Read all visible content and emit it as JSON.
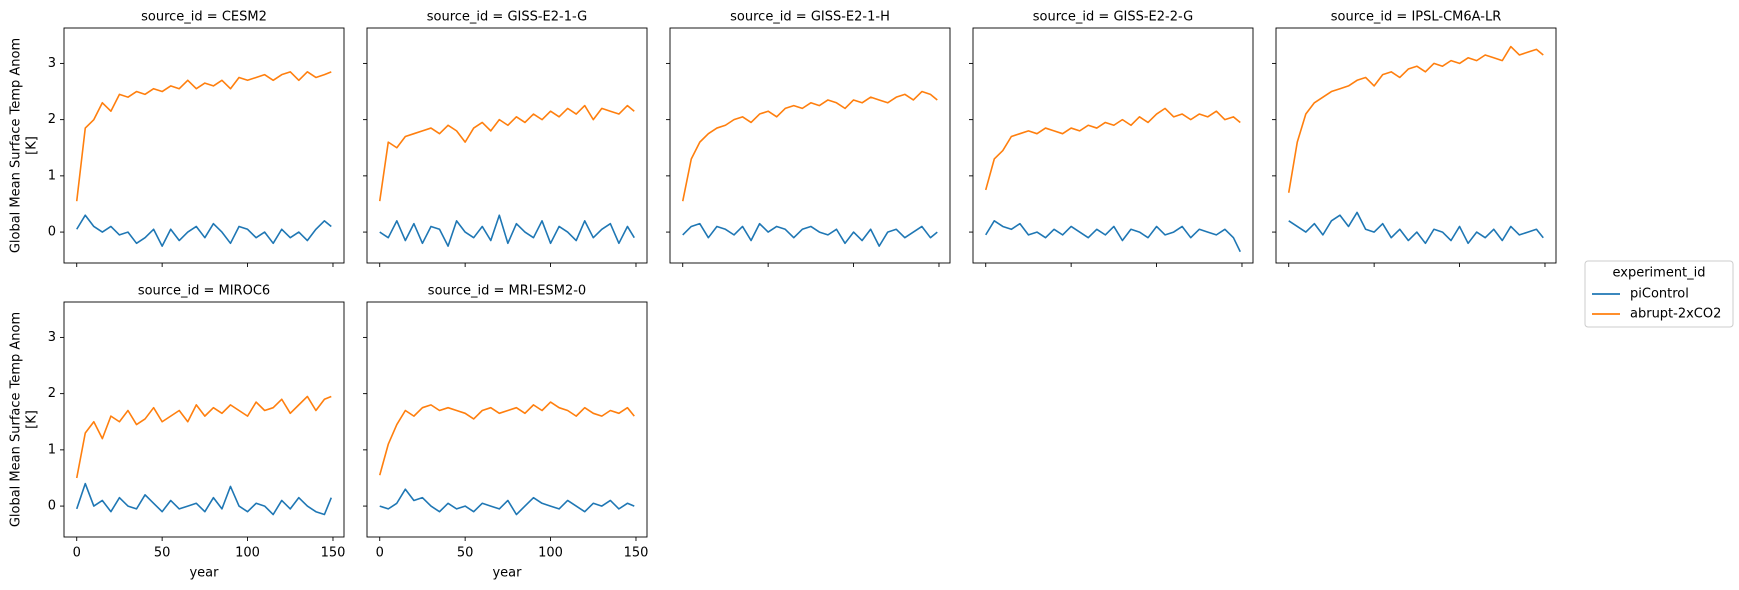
{
  "legend_title": "experiment_id",
  "chart_data": [
    {
      "type": "line",
      "title": "source_id = CESM2",
      "ylabel": [
        "Global Mean Surface Temp Anom",
        "[K]"
      ],
      "x": [
        0,
        5,
        10,
        15,
        20,
        25,
        30,
        35,
        40,
        45,
        50,
        55,
        60,
        65,
        70,
        75,
        80,
        85,
        90,
        95,
        100,
        105,
        110,
        115,
        120,
        125,
        130,
        135,
        140,
        145,
        149
      ],
      "series": [
        {
          "name": "piControl",
          "color": "#1f77b4",
          "values": [
            0.05,
            0.3,
            0.1,
            0.0,
            0.1,
            -0.05,
            0.0,
            -0.2,
            -0.1,
            0.05,
            -0.25,
            0.05,
            -0.15,
            0.0,
            0.1,
            -0.1,
            0.15,
            0.0,
            -0.2,
            0.1,
            0.05,
            -0.1,
            0.0,
            -0.2,
            0.05,
            -0.1,
            0.0,
            -0.15,
            0.05,
            0.2,
            0.1
          ]
        },
        {
          "name": "abrupt-2xCO2",
          "color": "#ff7f0e",
          "values": [
            0.55,
            1.85,
            2.0,
            2.3,
            2.15,
            2.45,
            2.4,
            2.5,
            2.45,
            2.55,
            2.5,
            2.6,
            2.55,
            2.7,
            2.55,
            2.65,
            2.6,
            2.7,
            2.55,
            2.75,
            2.7,
            2.75,
            2.8,
            2.7,
            2.8,
            2.85,
            2.7,
            2.85,
            2.75,
            2.8,
            2.85
          ]
        }
      ],
      "xlim": [
        -7.45,
        156.45
      ],
      "ylim": [
        -0.55,
        3.63
      ],
      "xticks": [
        0,
        50,
        100,
        150
      ],
      "yticks": [
        0,
        1,
        2,
        3
      ]
    },
    {
      "type": "line",
      "title": "source_id = GISS-E2-1-G",
      "x": [
        0,
        5,
        10,
        15,
        20,
        25,
        30,
        35,
        40,
        45,
        50,
        55,
        60,
        65,
        70,
        75,
        80,
        85,
        90,
        95,
        100,
        105,
        110,
        115,
        120,
        125,
        130,
        135,
        140,
        145,
        149
      ],
      "series": [
        {
          "name": "piControl",
          "color": "#1f77b4",
          "values": [
            0.0,
            -0.1,
            0.2,
            -0.15,
            0.15,
            -0.2,
            0.1,
            0.05,
            -0.25,
            0.2,
            0.0,
            -0.1,
            0.1,
            -0.15,
            0.3,
            -0.2,
            0.15,
            0.0,
            -0.1,
            0.2,
            -0.2,
            0.1,
            0.0,
            -0.15,
            0.2,
            -0.1,
            0.05,
            0.15,
            -0.2,
            0.1,
            -0.1
          ]
        },
        {
          "name": "abrupt-2xCO2",
          "color": "#ff7f0e",
          "values": [
            0.55,
            1.6,
            1.5,
            1.7,
            1.75,
            1.8,
            1.85,
            1.75,
            1.9,
            1.8,
            1.6,
            1.85,
            1.95,
            1.8,
            2.0,
            1.9,
            2.05,
            1.95,
            2.1,
            2.0,
            2.15,
            2.05,
            2.2,
            2.1,
            2.25,
            2.0,
            2.2,
            2.15,
            2.1,
            2.25,
            2.15
          ]
        }
      ],
      "xlim": [
        -7.45,
        156.45
      ],
      "ylim": [
        -0.55,
        3.63
      ],
      "xticks": [
        0,
        50,
        100,
        150
      ],
      "yticks": [
        0,
        1,
        2,
        3
      ]
    },
    {
      "type": "line",
      "title": "source_id = GISS-E2-1-H",
      "x": [
        0,
        5,
        10,
        15,
        20,
        25,
        30,
        35,
        40,
        45,
        50,
        55,
        60,
        65,
        70,
        75,
        80,
        85,
        90,
        95,
        100,
        105,
        110,
        115,
        120,
        125,
        130,
        135,
        140,
        145,
        149
      ],
      "series": [
        {
          "name": "piControl",
          "color": "#1f77b4",
          "values": [
            -0.05,
            0.1,
            0.15,
            -0.1,
            0.1,
            0.05,
            -0.05,
            0.1,
            -0.15,
            0.15,
            0.0,
            0.1,
            0.05,
            -0.1,
            0.05,
            0.1,
            0.0,
            -0.05,
            0.05,
            -0.2,
            0.0,
            -0.15,
            0.05,
            -0.25,
            0.0,
            0.05,
            -0.1,
            0.0,
            0.1,
            -0.1,
            0.0
          ]
        },
        {
          "name": "abrupt-2xCO2",
          "color": "#ff7f0e",
          "values": [
            0.55,
            1.3,
            1.6,
            1.75,
            1.85,
            1.9,
            2.0,
            2.05,
            1.95,
            2.1,
            2.15,
            2.05,
            2.2,
            2.25,
            2.2,
            2.3,
            2.25,
            2.35,
            2.3,
            2.2,
            2.35,
            2.3,
            2.4,
            2.35,
            2.3,
            2.4,
            2.45,
            2.35,
            2.5,
            2.45,
            2.35
          ]
        }
      ],
      "xlim": [
        -7.45,
        156.45
      ],
      "ylim": [
        -0.55,
        3.63
      ],
      "xticks": [
        0,
        50,
        100,
        150
      ],
      "yticks": [
        0,
        1,
        2,
        3
      ]
    },
    {
      "type": "line",
      "title": "source_id = GISS-E2-2-G",
      "x": [
        0,
        5,
        10,
        15,
        20,
        25,
        30,
        35,
        40,
        45,
        50,
        55,
        60,
        65,
        70,
        75,
        80,
        85,
        90,
        95,
        100,
        105,
        110,
        115,
        120,
        125,
        130,
        135,
        140,
        145,
        149
      ],
      "series": [
        {
          "name": "piControl",
          "color": "#1f77b4",
          "values": [
            -0.05,
            0.2,
            0.1,
            0.05,
            0.15,
            -0.05,
            0.0,
            -0.1,
            0.05,
            -0.05,
            0.1,
            0.0,
            -0.1,
            0.05,
            -0.05,
            0.1,
            -0.15,
            0.05,
            0.0,
            -0.1,
            0.1,
            -0.05,
            0.0,
            0.1,
            -0.1,
            0.05,
            0.0,
            -0.05,
            0.05,
            -0.1,
            -0.35
          ]
        },
        {
          "name": "abrupt-2xCO2",
          "color": "#ff7f0e",
          "values": [
            0.75,
            1.3,
            1.45,
            1.7,
            1.75,
            1.8,
            1.75,
            1.85,
            1.8,
            1.75,
            1.85,
            1.8,
            1.9,
            1.85,
            1.95,
            1.9,
            2.0,
            1.9,
            2.05,
            1.95,
            2.1,
            2.2,
            2.05,
            2.1,
            2.0,
            2.1,
            2.05,
            2.15,
            2.0,
            2.05,
            1.95
          ]
        }
      ],
      "xlim": [
        -7.45,
        156.45
      ],
      "ylim": [
        -0.55,
        3.63
      ],
      "xticks": [
        0,
        50,
        100,
        150
      ],
      "yticks": [
        0,
        1,
        2,
        3
      ]
    },
    {
      "type": "line",
      "title": "source_id = IPSL-CM6A-LR",
      "x": [
        0,
        5,
        10,
        15,
        20,
        25,
        30,
        35,
        40,
        45,
        50,
        55,
        60,
        65,
        70,
        75,
        80,
        85,
        90,
        95,
        100,
        105,
        110,
        115,
        120,
        125,
        130,
        135,
        140,
        145,
        149
      ],
      "series": [
        {
          "name": "piControl",
          "color": "#1f77b4",
          "values": [
            0.2,
            0.1,
            0.0,
            0.15,
            -0.05,
            0.2,
            0.3,
            0.1,
            0.35,
            0.05,
            0.0,
            0.15,
            -0.1,
            0.05,
            -0.15,
            0.0,
            -0.2,
            0.05,
            0.0,
            -0.15,
            0.1,
            -0.2,
            0.0,
            -0.1,
            0.05,
            -0.15,
            0.1,
            -0.05,
            0.0,
            0.05,
            -0.1
          ]
        },
        {
          "name": "abrupt-2xCO2",
          "color": "#ff7f0e",
          "values": [
            0.7,
            1.6,
            2.1,
            2.3,
            2.4,
            2.5,
            2.55,
            2.6,
            2.7,
            2.75,
            2.6,
            2.8,
            2.85,
            2.75,
            2.9,
            2.95,
            2.85,
            3.0,
            2.95,
            3.05,
            3.0,
            3.1,
            3.05,
            3.15,
            3.1,
            3.05,
            3.3,
            3.15,
            3.2,
            3.25,
            3.15
          ]
        }
      ],
      "xlim": [
        -7.45,
        156.45
      ],
      "ylim": [
        -0.55,
        3.63
      ],
      "xticks": [
        0,
        50,
        100,
        150
      ],
      "yticks": [
        0,
        1,
        2,
        3
      ]
    },
    {
      "type": "line",
      "title": "source_id = MIROC6",
      "ylabel": [
        "Global Mean Surface Temp Anom",
        "[K]"
      ],
      "xlabel": "year",
      "x": [
        0,
        5,
        10,
        15,
        20,
        25,
        30,
        35,
        40,
        45,
        50,
        55,
        60,
        65,
        70,
        75,
        80,
        85,
        90,
        95,
        100,
        105,
        110,
        115,
        120,
        125,
        130,
        135,
        140,
        145,
        149
      ],
      "series": [
        {
          "name": "piControl",
          "color": "#1f77b4",
          "values": [
            -0.05,
            0.4,
            0.0,
            0.1,
            -0.1,
            0.15,
            0.0,
            -0.05,
            0.2,
            0.05,
            -0.1,
            0.1,
            -0.05,
            0.0,
            0.05,
            -0.1,
            0.15,
            -0.05,
            0.35,
            0.0,
            -0.1,
            0.05,
            0.0,
            -0.15,
            0.1,
            -0.05,
            0.15,
            0.0,
            -0.1,
            -0.15,
            0.15
          ]
        },
        {
          "name": "abrupt-2xCO2",
          "color": "#ff7f0e",
          "values": [
            0.5,
            1.3,
            1.5,
            1.2,
            1.6,
            1.5,
            1.7,
            1.45,
            1.55,
            1.75,
            1.5,
            1.6,
            1.7,
            1.5,
            1.8,
            1.6,
            1.75,
            1.65,
            1.8,
            1.7,
            1.6,
            1.85,
            1.7,
            1.75,
            1.9,
            1.65,
            1.8,
            1.95,
            1.7,
            1.9,
            1.95
          ]
        }
      ],
      "xlim": [
        -7.45,
        156.45
      ],
      "ylim": [
        -0.55,
        3.63
      ],
      "xticks": [
        0,
        50,
        100,
        150
      ],
      "yticks": [
        0,
        1,
        2,
        3
      ]
    },
    {
      "type": "line",
      "title": "source_id = MRI-ESM2-0",
      "xlabel": "year",
      "x": [
        0,
        5,
        10,
        15,
        20,
        25,
        30,
        35,
        40,
        45,
        50,
        55,
        60,
        65,
        70,
        75,
        80,
        85,
        90,
        95,
        100,
        105,
        110,
        115,
        120,
        125,
        130,
        135,
        140,
        145,
        149
      ],
      "series": [
        {
          "name": "piControl",
          "color": "#1f77b4",
          "values": [
            0.0,
            -0.05,
            0.05,
            0.3,
            0.1,
            0.15,
            0.0,
            -0.1,
            0.05,
            -0.05,
            0.0,
            -0.1,
            0.05,
            0.0,
            -0.05,
            0.1,
            -0.15,
            0.0,
            0.15,
            0.05,
            0.0,
            -0.05,
            0.1,
            0.0,
            -0.1,
            0.05,
            0.0,
            0.1,
            -0.05,
            0.05,
            0.0
          ]
        },
        {
          "name": "abrupt-2xCO2",
          "color": "#ff7f0e",
          "values": [
            0.55,
            1.1,
            1.45,
            1.7,
            1.6,
            1.75,
            1.8,
            1.7,
            1.75,
            1.7,
            1.65,
            1.55,
            1.7,
            1.75,
            1.65,
            1.7,
            1.75,
            1.65,
            1.8,
            1.7,
            1.85,
            1.75,
            1.7,
            1.6,
            1.75,
            1.65,
            1.6,
            1.7,
            1.65,
            1.75,
            1.6
          ]
        }
      ],
      "xlim": [
        -7.45,
        156.45
      ],
      "ylim": [
        -0.55,
        3.63
      ],
      "xticks": [
        0,
        50,
        100,
        150
      ],
      "yticks": [
        0,
        1,
        2,
        3
      ]
    }
  ]
}
